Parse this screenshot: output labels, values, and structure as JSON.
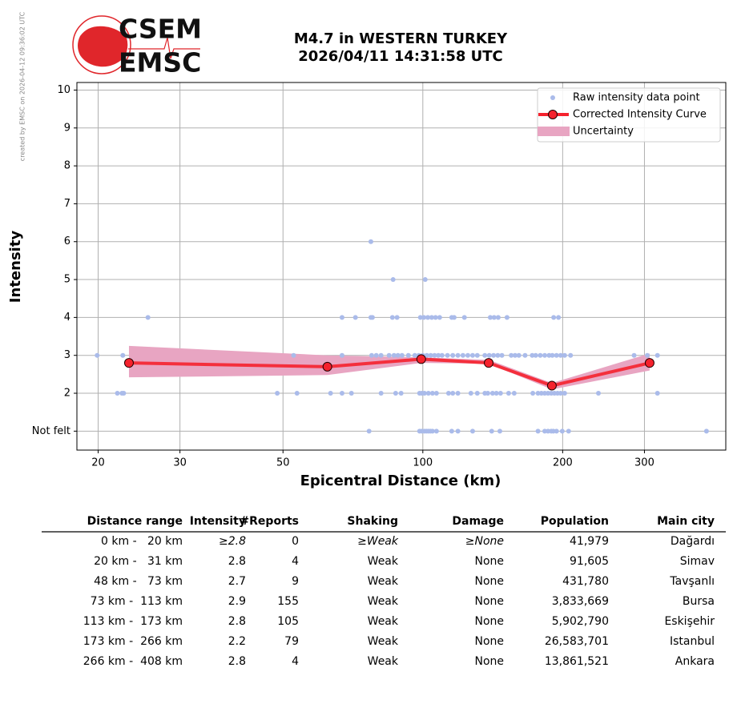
{
  "credit": "created by EMSC on 2026-04-12 09:36:02 UTC",
  "logo": [
    "CSEM",
    "EMSC"
  ],
  "chart_data": {
    "type": "scatter",
    "title": "M4.7 in WESTERN TURKEY",
    "subtitle": "2026/04/11 14:31:58 UTC",
    "x_label": "Epicentral Distance (km)",
    "y_label": "Intensity",
    "log_x": true,
    "grid": true,
    "legend": "upper right",
    "xlim": [
      18,
      449
    ],
    "xticks": [
      20,
      30,
      50,
      100,
      200,
      300
    ],
    "ylim": [
      0.5,
      10.2
    ],
    "yticks": [
      {
        "value": 1,
        "label": "Not felt"
      },
      2,
      3,
      4,
      5,
      6,
      7,
      8,
      9,
      10
    ],
    "series": [
      {
        "name": "Raw intensity data point",
        "type": "scatter",
        "color": "#aabbea",
        "x": [
          76.6,
          98.4,
          99.5,
          100.8,
          101.8,
          102.8,
          103.8,
          104.9,
          107,
          115.4,
          119,
          128,
          140.7,
          146.5,
          177,
          183,
          186,
          189,
          191,
          194,
          199.6,
          206,
          408,
          22.0,
          22.5,
          22.7,
          48.6,
          53.6,
          63.3,
          67,
          70.2,
          81.3,
          87.4,
          89.8,
          98.4,
          99.5,
          100.8,
          102.8,
          104.9,
          107,
          113.6,
          116,
          119,
          126.9,
          131,
          136,
          138,
          141.3,
          144,
          147,
          153,
          157.3,
          172.5,
          177,
          180,
          183,
          186,
          189,
          192,
          195,
          198,
          202,
          238.8,
          320,
          19.9,
          22.6,
          52.7,
          67,
          77.6,
          79.4,
          81.3,
          84.6,
          86.7,
          88.4,
          90.2,
          93.1,
          96.1,
          98,
          100,
          102,
          104,
          106,
          108,
          110,
          113,
          116,
          119,
          122,
          125,
          128,
          131,
          136,
          139,
          142,
          145,
          148,
          155,
          158,
          161,
          166,
          172,
          175,
          179,
          183,
          187,
          190,
          194,
          198,
          202,
          208,
          285,
          304.3,
          320,
          25.6,
          67,
          71.6,
          77.3,
          77.9,
          86,
          88,
          98.8,
          100.5,
          102.5,
          104.5,
          106.5,
          108.7,
          115.4,
          116.8,
          122.9,
          139.7,
          142.4,
          145.3,
          151.8,
          191.3,
          195.9,
          86.3,
          101.2,
          77.3
        ],
        "values": [
          1,
          1,
          1,
          1,
          1,
          1,
          1,
          1,
          1,
          1,
          1,
          1,
          1,
          1,
          1,
          1,
          1,
          1,
          1,
          1,
          1,
          1,
          1,
          2,
          2,
          2,
          2,
          2,
          2,
          2,
          2,
          2,
          2,
          2,
          2,
          2,
          2,
          2,
          2,
          2,
          2,
          2,
          2,
          2,
          2,
          2,
          2,
          2,
          2,
          2,
          2,
          2,
          2,
          2,
          2,
          2,
          2,
          2,
          2,
          2,
          2,
          2,
          2,
          2,
          3,
          3,
          3,
          3,
          3,
          3,
          3,
          3,
          3,
          3,
          3,
          3,
          3,
          3,
          3,
          3,
          3,
          3,
          3,
          3,
          3,
          3,
          3,
          3,
          3,
          3,
          3,
          3,
          3,
          3,
          3,
          3,
          3,
          3,
          3,
          3,
          3,
          3,
          3,
          3,
          3,
          3,
          3,
          3,
          3,
          3,
          3,
          3,
          3,
          4,
          4,
          4,
          4,
          4,
          4,
          4,
          4,
          4,
          4,
          4,
          4,
          4,
          4,
          4,
          4,
          4,
          4,
          4,
          4,
          4,
          4,
          5,
          5,
          6
        ]
      },
      {
        "name": "Corrected Intensity Curve",
        "type": "line",
        "color": "#f5222d",
        "x": [
          23.3,
          62.3,
          99.2,
          138.6,
          189.6,
          307.8
        ],
        "values": [
          2.8,
          2.7,
          2.9,
          2.8,
          2.2,
          2.8
        ]
      },
      {
        "name": "Uncertainty",
        "type": "band",
        "color": "#e8a5c2",
        "x": [
          23.3,
          62.3,
          99.2,
          138.6,
          189.6,
          307.8
        ],
        "upper": [
          3.25,
          3.0,
          2.95,
          2.88,
          2.27,
          3.05
        ],
        "lower": [
          2.42,
          2.48,
          2.8,
          2.78,
          2.1,
          2.6
        ]
      }
    ]
  },
  "table": {
    "header": [
      "Distance range",
      "Intensity",
      "#Reports",
      "Shaking",
      "Damage",
      "Population",
      "Main city"
    ],
    "rows": [
      [
        "0 km -   20 km",
        "≥2.8",
        "0",
        "≥Weak",
        "≥None",
        "41,979",
        "Dağardı"
      ],
      [
        "20 km -   31 km",
        "2.8",
        "4",
        "Weak",
        "None",
        "91,605",
        "Simav"
      ],
      [
        "48 km -   73 km",
        "2.7",
        "9",
        "Weak",
        "None",
        "431,780",
        "Tavşanlı"
      ],
      [
        "73 km -  113 km",
        "2.9",
        "155",
        "Weak",
        "None",
        "3,833,669",
        "Bursa"
      ],
      [
        "113 km -  173 km",
        "2.8",
        "105",
        "Weak",
        "None",
        "5,902,790",
        "Eskişehir"
      ],
      [
        "173 km -  266 km",
        "2.2",
        "79",
        "Weak",
        "None",
        "26,583,701",
        "Istanbul"
      ],
      [
        "266 km -  408 km",
        "2.8",
        "4",
        "Weak",
        "None",
        "13,861,521",
        "Ankara"
      ]
    ]
  }
}
